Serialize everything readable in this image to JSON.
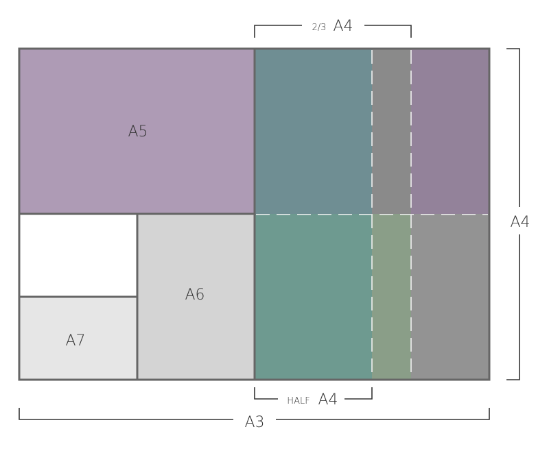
{
  "labels": {
    "a5": "A5",
    "a6": "A6",
    "a7": "A7",
    "a4_side": "A4",
    "a3_bottom": "A3",
    "two_thirds_fraction": "2/3",
    "two_thirds_suffix": "A4",
    "half_prefix": "HALF",
    "half_suffix": "A4"
  },
  "colors": {
    "a5": "#ae9bb5",
    "a6": "#d4d4d4",
    "a7": "#e6e6e6",
    "blank": "#ffffff",
    "teal_top": "#6f8e93",
    "gray_top": "#8a8a8a",
    "purple_top": "#93829a",
    "teal_bottom": "#6e9a90",
    "green_bottom": "#8a9e88",
    "gray_bottom": "#939393",
    "border": "#666666"
  }
}
